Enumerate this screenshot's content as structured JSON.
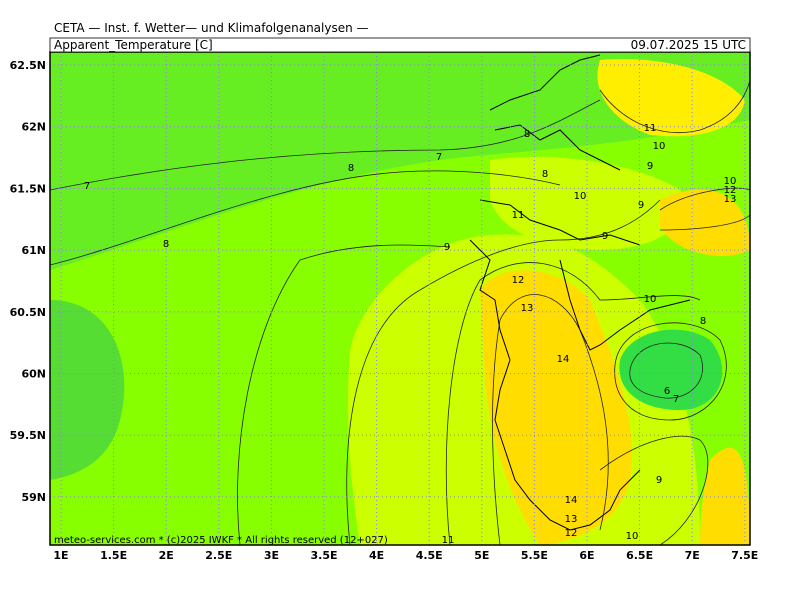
{
  "header": {
    "title": "CETA — Inst. f. Wetter— und Klimafolgenanalysen —",
    "variable": "Apparent_Temperature [C]",
    "datetime": "09.07.2025 15 UTC"
  },
  "map": {
    "lat_labels": [
      "62.5N",
      "62N",
      "61.5N",
      "61N",
      "60.5N",
      "60N",
      "59.5N",
      "59N"
    ],
    "lon_labels": [
      "1E",
      "1.5E",
      "2E",
      "2.5E",
      "3E",
      "3.5E",
      "4E",
      "4.5E",
      "5E",
      "5.5E",
      "6E",
      "6.5E",
      "7E",
      "7.5E"
    ],
    "contour_labels": [
      "7",
      "8",
      "8",
      "7",
      "8",
      "8",
      "9",
      "10",
      "11",
      "9",
      "9",
      "11",
      "10",
      "9",
      "10",
      "12",
      "13",
      "12",
      "13",
      "10",
      "8",
      "14",
      "6",
      "7",
      "9",
      "14",
      "13",
      "12",
      "10",
      "11"
    ],
    "footer": "meteo-services.com * (c)2025 IWKF * All rights reserved (12+027)"
  }
}
